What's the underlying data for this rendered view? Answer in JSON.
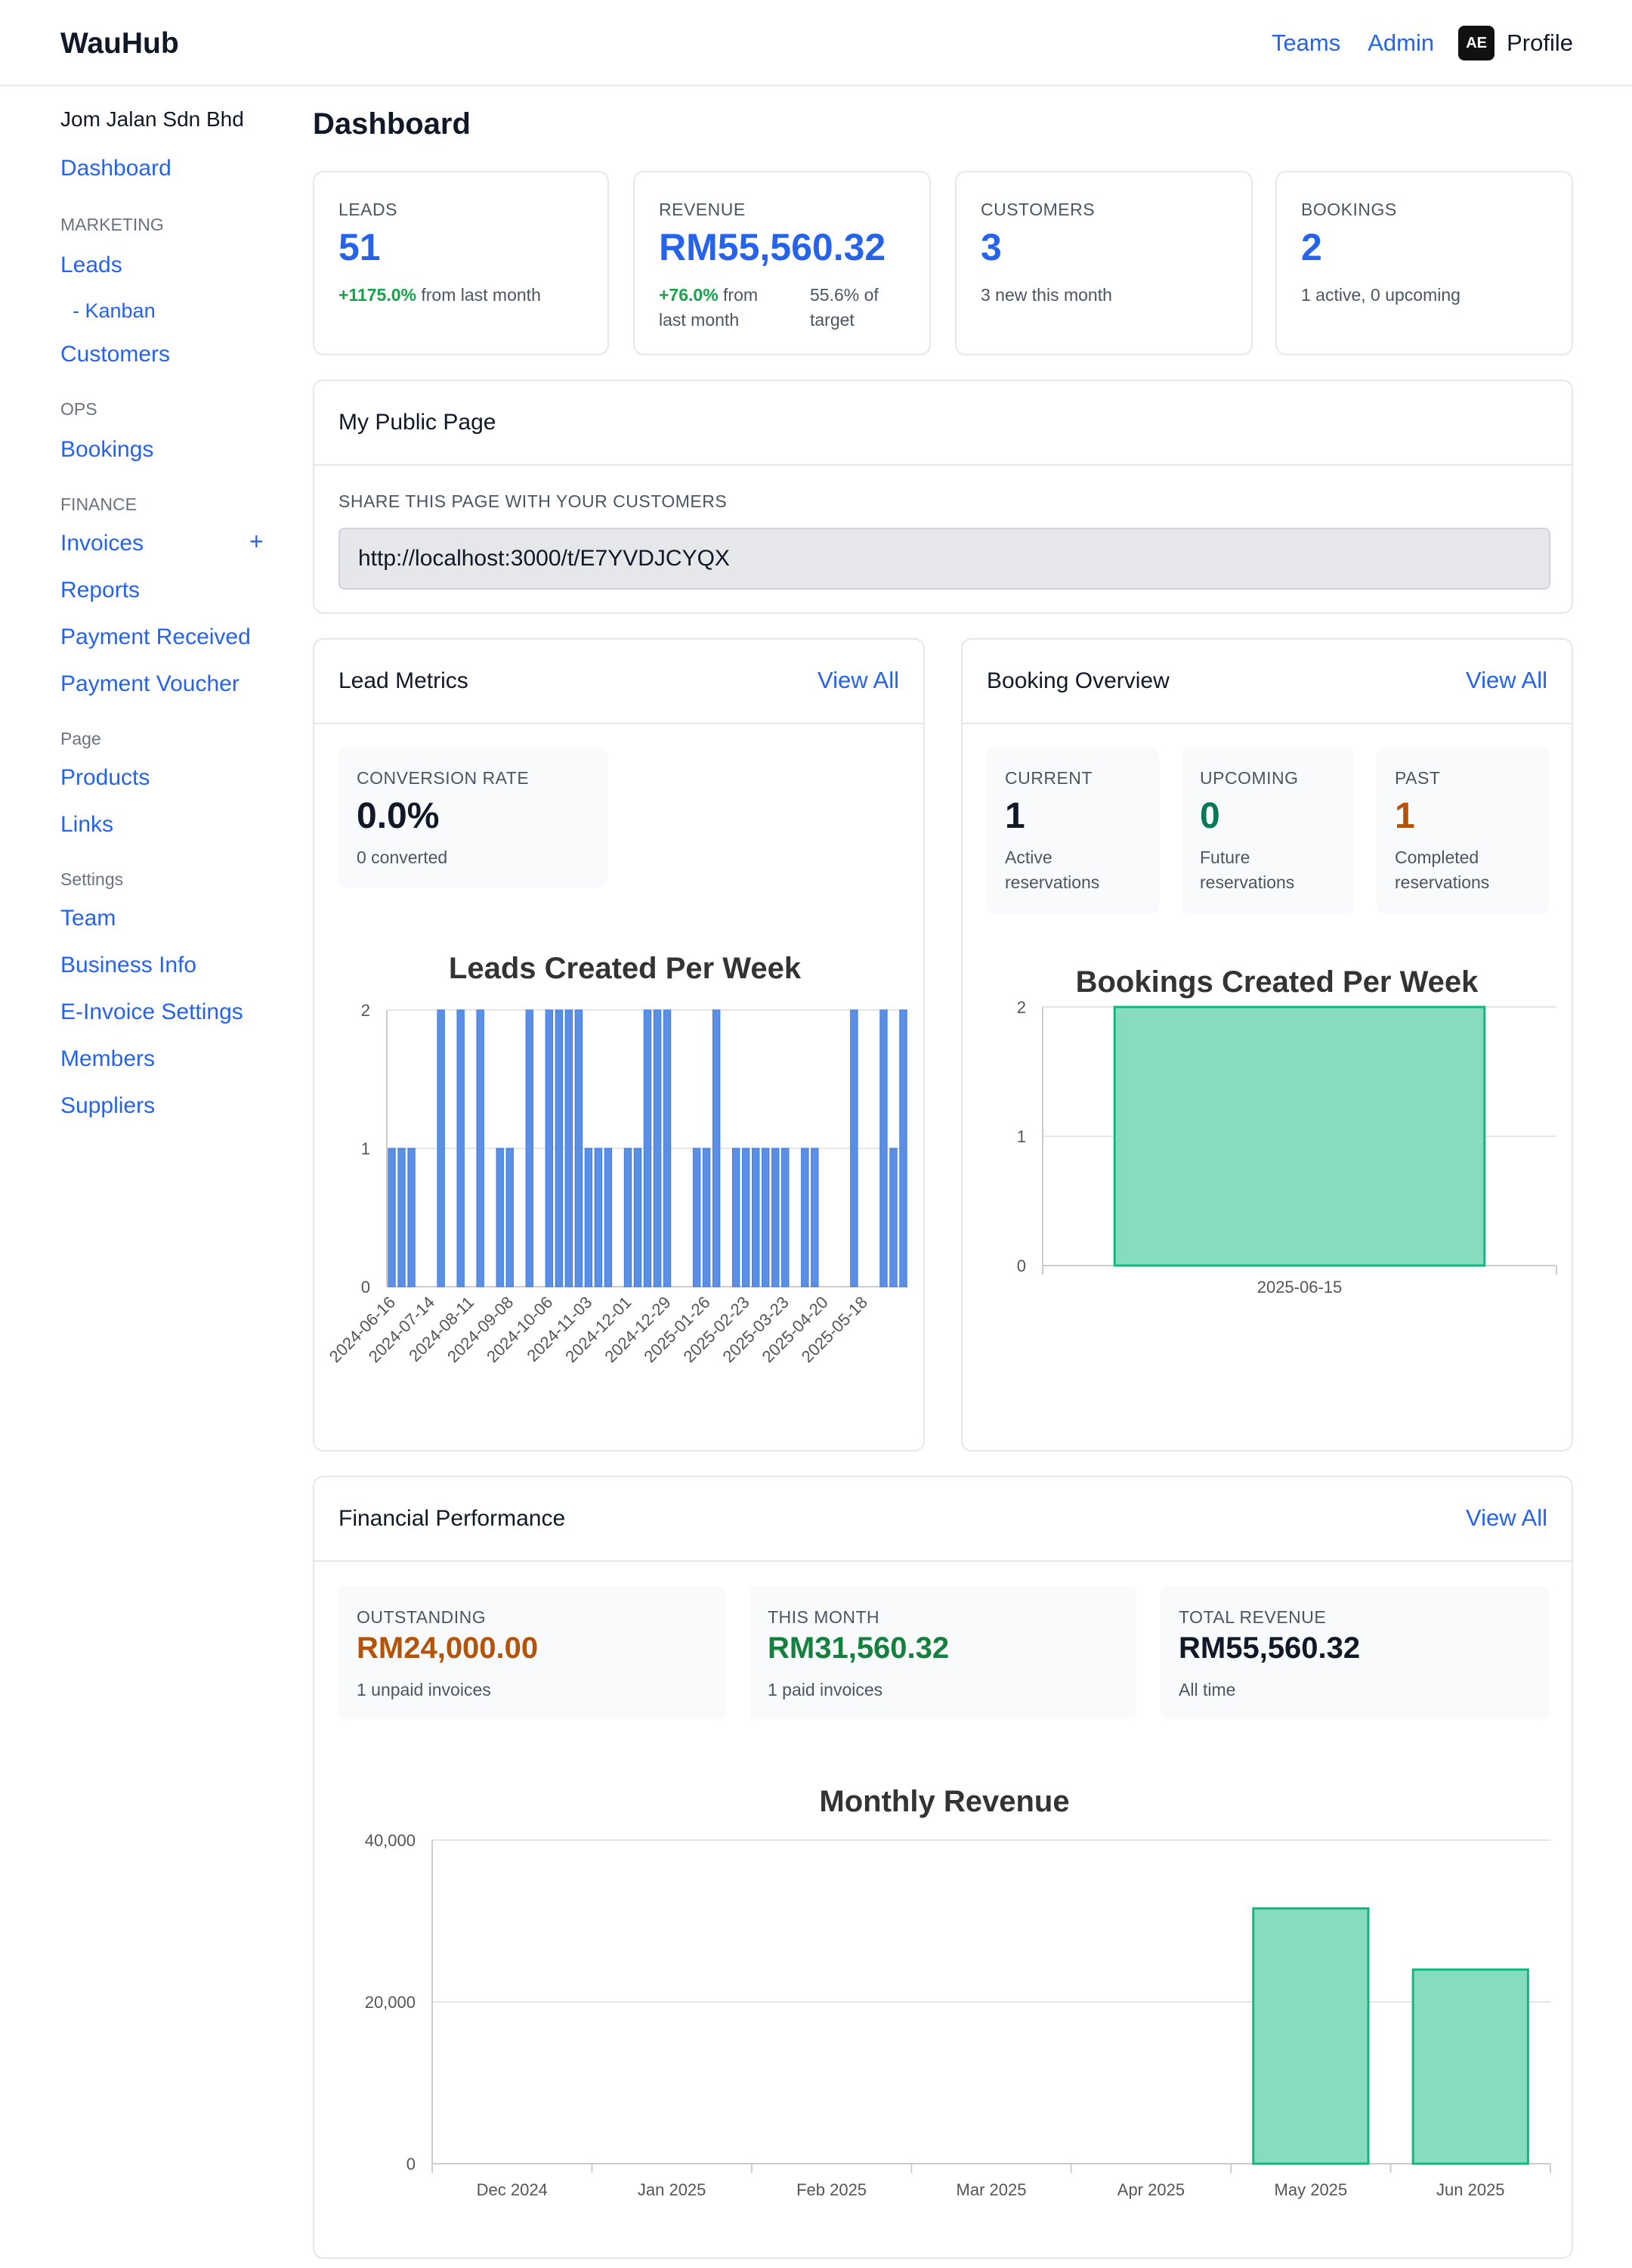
{
  "app": {
    "brand": "WauHub",
    "nav": {
      "teams": "Teams",
      "admin": "Admin",
      "profile": "Profile",
      "avatar_initials": "AE"
    }
  },
  "sidebar": {
    "company": "Jom Jalan Sdn Bhd",
    "dashboard": "Dashboard",
    "sections": {
      "marketing": "MARKETING",
      "ops": "OPS",
      "finance": "FINANCE",
      "page": "Page",
      "settings": "Settings"
    },
    "items": {
      "leads": "Leads",
      "kanban": "- Kanban",
      "customers": "Customers",
      "bookings": "Bookings",
      "invoices": "Invoices",
      "invoices_add": "+",
      "reports": "Reports",
      "payment_received": "Payment Received",
      "payment_voucher": "Payment Voucher",
      "products": "Products",
      "links": "Links",
      "team": "Team",
      "business_info": "Business Info",
      "einvoice_settings": "E-Invoice Settings",
      "members": "Members",
      "suppliers": "Suppliers"
    }
  },
  "page": {
    "title": "Dashboard"
  },
  "stats": {
    "leads": {
      "label": "LEADS",
      "value": "51",
      "change": "+1175.0%",
      "change_suffix": "from last month"
    },
    "revenue": {
      "label": "REVENUE",
      "value": "RM55,560.32",
      "change": "+76.0%",
      "change_suffix": "from",
      "change_suffix2": "last month",
      "target": "55.6% of",
      "target2": "target"
    },
    "customers": {
      "label": "CUSTOMERS",
      "value": "3",
      "sub": "3 new this month"
    },
    "bookings": {
      "label": "BOOKINGS",
      "value": "2",
      "sub": "1 active, 0 upcoming"
    }
  },
  "public_page": {
    "title": "My Public Page",
    "share_label": "SHARE THIS PAGE WITH YOUR CUSTOMERS",
    "url": "http://localhost:3000/t/E7YVDJCYQX"
  },
  "lead_metrics": {
    "title": "Lead Metrics",
    "view_all": "View All",
    "conversion": {
      "label": "CONVERSION RATE",
      "value": "0.0%",
      "sub": "0 converted"
    }
  },
  "booking_overview": {
    "title": "Booking Overview",
    "view_all": "View All",
    "current": {
      "label": "CURRENT",
      "value": "1",
      "sub1": "Active",
      "sub2": "reservations"
    },
    "upcoming": {
      "label": "UPCOMING",
      "value": "0",
      "sub1": "Future",
      "sub2": "reservations"
    },
    "past": {
      "label": "PAST",
      "value": "1",
      "sub1": "Completed",
      "sub2": "reservations"
    }
  },
  "financial": {
    "title": "Financial Performance",
    "view_all": "View All",
    "outstanding": {
      "label": "OUTSTANDING",
      "value": "RM24,000.00",
      "sub": "1 unpaid invoices"
    },
    "this_month": {
      "label": "THIS MONTH",
      "value": "RM31,560.32",
      "sub": "1 paid invoices"
    },
    "total": {
      "label": "TOTAL REVENUE",
      "value": "RM55,560.32",
      "sub": "All time"
    }
  },
  "colors": {
    "link": "#2563eb",
    "leads_bar": "#5b8fe6",
    "green_fill": "#86ddbd",
    "green_stroke": "#10b981",
    "outstanding": "#b45309",
    "this_month": "#15803d",
    "upcoming": "#047857",
    "past": "#b45309"
  },
  "chart_data": [
    {
      "type": "bar",
      "title": "Leads Created Per Week",
      "ylim": [
        0,
        2
      ],
      "yticks": [
        "0",
        "1",
        "2"
      ],
      "xtick_labels": [
        "2024-06-16",
        "2024-07-14",
        "2024-08-11",
        "2024-09-08",
        "2024-10-06",
        "2024-11-03",
        "2024-12-01",
        "2024-12-29",
        "2025-01-26",
        "2025-02-23",
        "2025-03-23",
        "2025-04-20",
        "2025-05-18"
      ],
      "values": [
        1,
        1,
        1,
        0,
        0,
        2,
        0,
        2,
        0,
        2,
        0,
        1,
        1,
        0,
        2,
        0,
        2,
        2,
        2,
        2,
        1,
        1,
        1,
        0,
        1,
        1,
        2,
        2,
        2,
        0,
        0,
        1,
        1,
        2,
        0,
        1,
        1,
        1,
        1,
        1,
        1,
        0,
        1,
        1,
        0,
        0,
        0,
        2,
        0,
        0,
        2,
        1,
        2
      ]
    },
    {
      "type": "bar",
      "title": "Bookings Created Per Week",
      "categories": [
        "2025-06-15"
      ],
      "values": [
        2
      ],
      "ylim": [
        0,
        2
      ],
      "yticks": [
        "0",
        "1",
        "2"
      ]
    },
    {
      "type": "bar",
      "title": "Monthly Revenue",
      "categories": [
        "Dec 2024",
        "Jan 2025",
        "Feb 2025",
        "Mar 2025",
        "Apr 2025",
        "May 2025",
        "Jun 2025"
      ],
      "values": [
        0,
        0,
        0,
        0,
        0,
        31560.32,
        24000
      ],
      "ylim": [
        0,
        40000
      ],
      "yticks": [
        "0",
        "20,000",
        "40,000"
      ]
    }
  ]
}
